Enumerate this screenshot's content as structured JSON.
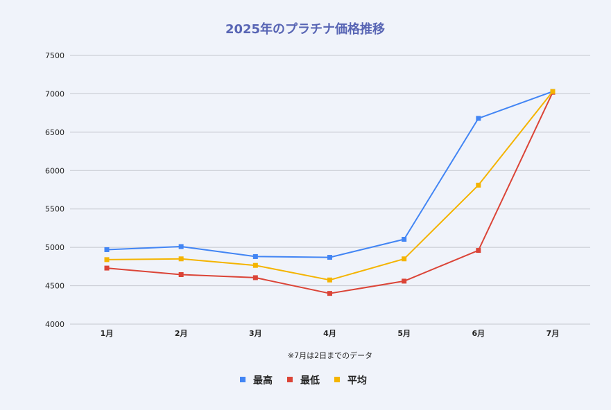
{
  "chart_data": {
    "type": "line",
    "title": "2025年のプラチナ価格推移",
    "note": "※7月は2日までのデータ",
    "categories": [
      "1月",
      "2月",
      "3月",
      "4月",
      "5月",
      "6月",
      "7月"
    ],
    "ylim": [
      4000,
      7500
    ],
    "yticks": [
      4000,
      4500,
      5000,
      5500,
      6000,
      6500,
      7000,
      7500
    ],
    "grid": true,
    "legend_position": "bottom",
    "series": [
      {
        "name": "最高",
        "color": "#4285f4",
        "values": [
          4970,
          5010,
          4880,
          4870,
          5105,
          6680,
          7030
        ]
      },
      {
        "name": "最低",
        "color": "#db4437",
        "values": [
          4730,
          4645,
          4605,
          4400,
          4560,
          4960,
          7020
        ]
      },
      {
        "name": "平均",
        "color": "#f4b400",
        "values": [
          4840,
          4850,
          4765,
          4575,
          4850,
          5810,
          7030
        ]
      }
    ]
  }
}
